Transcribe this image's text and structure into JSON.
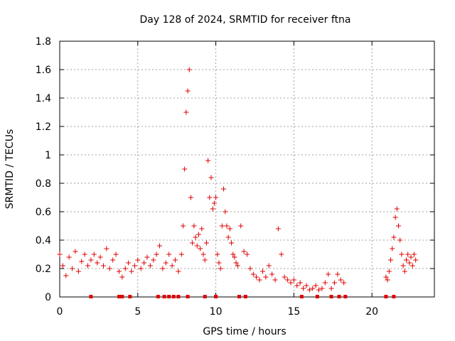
{
  "chart_data": {
    "type": "scatter",
    "title": "Day 128 of 2024, SRMTID for receiver ftna",
    "xlabel": "GPS time / hours",
    "ylabel": "SRMTID / TECUs",
    "xlim": [
      0,
      24
    ],
    "ylim": [
      0,
      1.8
    ],
    "xticks": [
      0,
      5,
      10,
      15,
      20
    ],
    "xtick_labels": [
      "0",
      "5",
      "10",
      "15",
      "20"
    ],
    "yticks": [
      0,
      0.2,
      0.4,
      0.6,
      0.8,
      1,
      1.2,
      1.4,
      1.6,
      1.8
    ],
    "ytick_labels": [
      "0",
      "0.2",
      "0.4",
      "0.6",
      "0.8",
      "1",
      "1.2",
      "1.4",
      "1.6",
      "1.8"
    ],
    "grid": true,
    "marker": "plus",
    "color": "#e00000",
    "series": [
      {
        "name": "SRMTID",
        "x": [
          0.0,
          0.2,
          0.4,
          0.6,
          0.8,
          1.0,
          1.2,
          1.4,
          1.6,
          1.8,
          2.0,
          2.2,
          2.4,
          2.6,
          2.8,
          3.0,
          3.2,
          3.4,
          3.6,
          3.8,
          4.0,
          4.2,
          4.4,
          4.6,
          4.8,
          5.0,
          5.2,
          5.4,
          5.6,
          5.8,
          6.0,
          6.2,
          6.4,
          6.6,
          6.8,
          7.0,
          7.2,
          7.4,
          7.6,
          7.8,
          7.9,
          8.0,
          8.1,
          8.2,
          8.3,
          8.4,
          8.5,
          8.6,
          8.7,
          8.8,
          8.9,
          9.0,
          9.1,
          9.2,
          9.3,
          9.4,
          9.5,
          9.6,
          9.7,
          9.8,
          9.9,
          10.0,
          10.1,
          10.2,
          10.3,
          10.4,
          10.5,
          10.6,
          10.7,
          10.8,
          10.9,
          11.0,
          11.1,
          11.2,
          11.3,
          11.4,
          11.6,
          11.8,
          12.0,
          12.2,
          12.4,
          12.6,
          12.8,
          13.0,
          13.2,
          13.4,
          13.6,
          13.8,
          14.0,
          14.2,
          14.4,
          14.6,
          14.8,
          15.0,
          15.2,
          15.4,
          15.6,
          15.8,
          16.0,
          16.2,
          16.4,
          16.6,
          16.8,
          17.0,
          17.2,
          17.4,
          17.6,
          17.8,
          18.0,
          18.2,
          20.9,
          21.0,
          21.1,
          21.2,
          21.3,
          21.4,
          21.5,
          21.6,
          21.7,
          21.8,
          21.9,
          22.0,
          22.1,
          22.2,
          22.3,
          22.4,
          22.5,
          22.6,
          22.7,
          22.8
        ],
        "values": [
          0.3,
          0.22,
          0.15,
          0.28,
          0.2,
          0.32,
          0.18,
          0.25,
          0.3,
          0.22,
          0.26,
          0.3,
          0.24,
          0.28,
          0.22,
          0.34,
          0.2,
          0.26,
          0.3,
          0.18,
          0.14,
          0.2,
          0.24,
          0.18,
          0.22,
          0.26,
          0.2,
          0.24,
          0.28,
          0.22,
          0.26,
          0.3,
          0.36,
          0.2,
          0.24,
          0.3,
          0.22,
          0.26,
          0.18,
          0.3,
          0.5,
          0.9,
          1.3,
          1.45,
          1.6,
          0.7,
          0.38,
          0.5,
          0.42,
          0.36,
          0.44,
          0.34,
          0.48,
          0.3,
          0.26,
          0.38,
          0.96,
          0.7,
          0.84,
          0.62,
          0.66,
          0.7,
          0.3,
          0.24,
          0.2,
          0.5,
          0.76,
          0.6,
          0.5,
          0.42,
          0.48,
          0.38,
          0.3,
          0.28,
          0.24,
          0.22,
          0.5,
          0.32,
          0.3,
          0.2,
          0.16,
          0.14,
          0.12,
          0.18,
          0.14,
          0.22,
          0.16,
          0.12,
          0.48,
          0.3,
          0.14,
          0.12,
          0.1,
          0.12,
          0.08,
          0.1,
          0.06,
          0.08,
          0.05,
          0.06,
          0.08,
          0.05,
          0.06,
          0.1,
          0.16,
          0.06,
          0.1,
          0.16,
          0.12,
          0.1,
          0.14,
          0.12,
          0.18,
          0.26,
          0.34,
          0.42,
          0.56,
          0.62,
          0.5,
          0.4,
          0.3,
          0.22,
          0.18,
          0.26,
          0.3,
          0.24,
          0.28,
          0.22,
          0.3,
          0.26
        ]
      }
    ],
    "zero_markers_x": [
      2.0,
      3.8,
      4.0,
      4.5,
      6.3,
      6.7,
      7.0,
      7.3,
      7.6,
      8.2,
      9.3,
      10.0,
      11.5,
      11.9,
      15.5,
      16.5,
      17.4,
      17.9,
      18.3,
      20.9,
      21.4
    ]
  }
}
